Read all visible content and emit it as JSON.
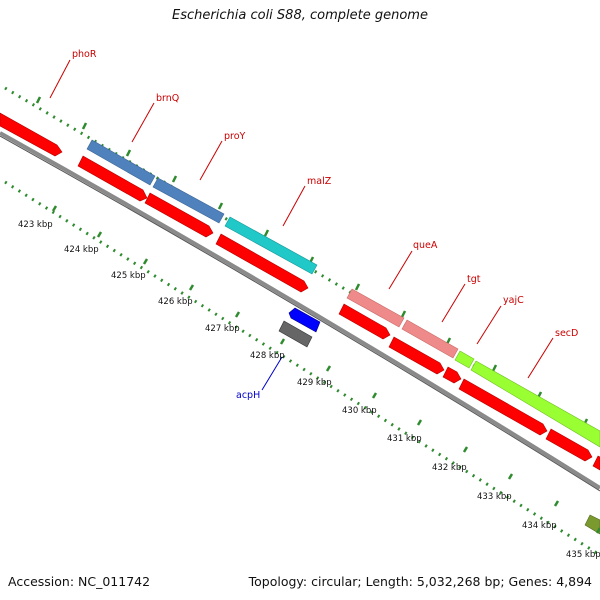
{
  "title": "Escherichia coli S88, complete genome",
  "footer": {
    "accession_label": "Accession: NC_011742",
    "topology_label": "Topology: circular; Length: 5,032,268 bp; Genes: 4,894"
  },
  "colors": {
    "backbone": "#8a8a8a",
    "tick": "#2e8b2e",
    "cds_forward": "#ff0000",
    "label_red": "#cc0000",
    "label_blue": "#0000cc",
    "cog_blue": "#4f81bd",
    "cog_cyan": "#20c8c8",
    "cog_pink": "#ef8a8a",
    "cog_green": "#99ff33",
    "cog_olive": "#7a9a30",
    "rna_blue": "#0000ff",
    "rna_gray": "#666666"
  },
  "gene_labels": [
    {
      "text": "phoR",
      "color": "red"
    },
    {
      "text": "brnQ",
      "color": "red"
    },
    {
      "text": "proY",
      "color": "red"
    },
    {
      "text": "malZ",
      "color": "red"
    },
    {
      "text": "queA",
      "color": "red"
    },
    {
      "text": "tgt",
      "color": "red"
    },
    {
      "text": "yajC",
      "color": "red"
    },
    {
      "text": "secD",
      "color": "red"
    },
    {
      "text": "acpH",
      "color": "blue"
    }
  ],
  "ticks": [
    "423 kbp",
    "424 kbp",
    "425 kbp",
    "426 kbp",
    "427 kbp",
    "428 kbp",
    "429 kbp",
    "430 kbp",
    "431 kbp",
    "432 kbp",
    "433 kbp",
    "434 kbp",
    "435 kbp"
  ]
}
